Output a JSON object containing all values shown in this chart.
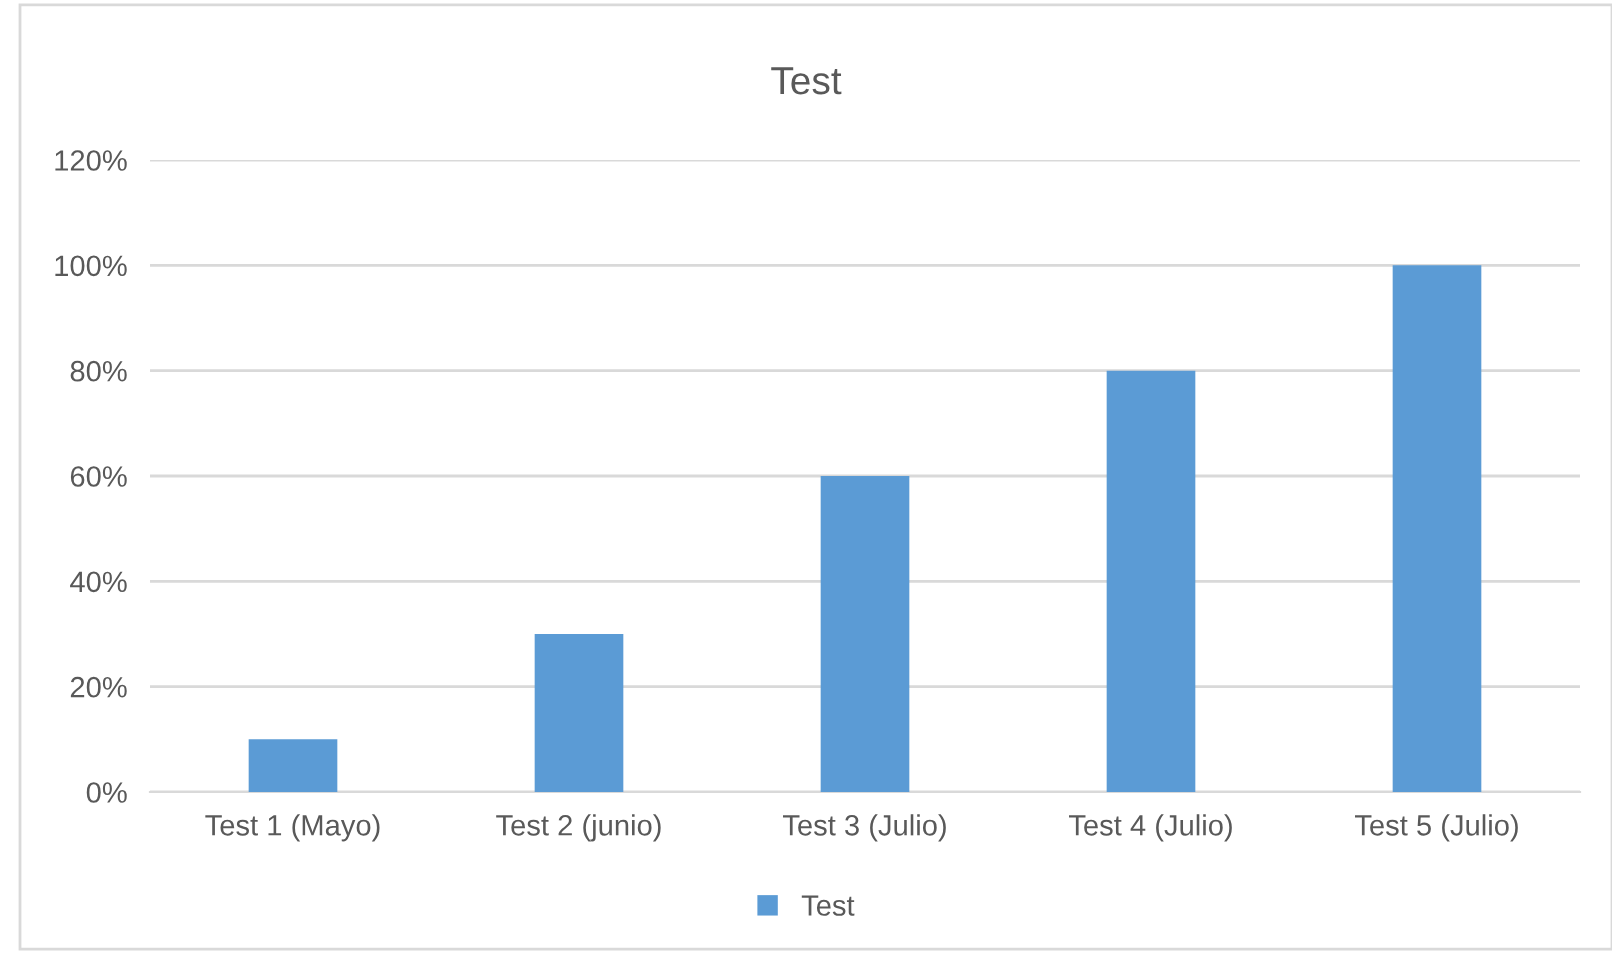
{
  "chart_data": {
    "type": "bar",
    "title": "Test",
    "categories": [
      "Test 1 (Mayo)",
      "Test 2 (junio)",
      "Test 3 (Julio)",
      "Test 4 (Julio)",
      "Test 5 (Julio)"
    ],
    "series": [
      {
        "name": "Test",
        "color": "#5b9bd5",
        "values": [
          10,
          30,
          60,
          80,
          100
        ]
      }
    ],
    "ylim": [
      0,
      120
    ],
    "yticks": [
      {
        "value": 0,
        "label": "0%"
      },
      {
        "value": 20,
        "label": "20%"
      },
      {
        "value": 40,
        "label": "40%"
      },
      {
        "value": 60,
        "label": "60%"
      },
      {
        "value": 80,
        "label": "80%"
      },
      {
        "value": 100,
        "label": "100%"
      },
      {
        "value": 120,
        "label": "120%"
      }
    ],
    "grid": "y",
    "legend": "bottom"
  }
}
